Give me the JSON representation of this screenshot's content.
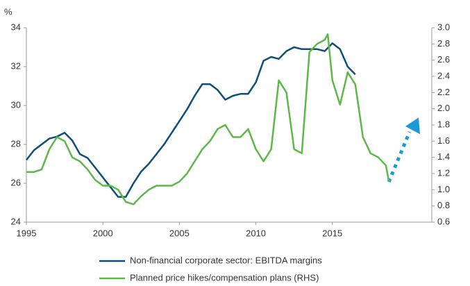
{
  "chart_data": {
    "type": "line",
    "ylabel": "%",
    "xlim": [
      1995,
      2021.5
    ],
    "xticks": [
      1995,
      2000,
      2005,
      2010,
      2015
    ],
    "ylim": [
      24,
      34
    ],
    "yticks": [
      24,
      26,
      28,
      30,
      32,
      34
    ],
    "y2lim": [
      0.6,
      3.0
    ],
    "y2ticks": [
      0.6,
      0.8,
      {
        "value": 1.0,
        "label": "1.0"
      },
      1.2,
      1.4,
      1.6,
      1.8,
      {
        "value": 2.0,
        "label": "2.0"
      },
      2.2,
      2.4,
      2.6,
      2.8,
      {
        "value": 3.0,
        "label": "3.0"
      }
    ],
    "series": [
      {
        "name": "Non-financial corporate sector: EBITDA margins",
        "color": "#0d4f78",
        "x": [
          1995,
          1995.5,
          1996,
          1996.5,
          1997,
          1997.5,
          1998,
          1998.5,
          1999,
          1999.5,
          2000,
          2000.5,
          2001,
          2001.5,
          2002,
          2002.5,
          2003,
          2003.5,
          2004,
          2004.5,
          2005,
          2005.5,
          2006,
          2006.5,
          2007,
          2007.5,
          2008,
          2008.5,
          2009,
          2009.5,
          2010,
          2010.5,
          2011,
          2011.5,
          2012,
          2012.5,
          2013,
          2013.5,
          2014,
          2014.5,
          2015,
          2015.5,
          2016,
          2016.5
        ],
        "values": [
          27.2,
          27.7,
          28.0,
          28.3,
          28.4,
          28.6,
          28.2,
          27.5,
          27.3,
          26.8,
          26.3,
          25.8,
          25.3,
          25.3,
          26.0,
          26.6,
          27.0,
          27.5,
          28.0,
          28.6,
          29.2,
          29.8,
          30.5,
          31.1,
          31.1,
          30.8,
          30.3,
          30.5,
          30.6,
          30.6,
          31.2,
          32.3,
          32.5,
          32.4,
          32.8,
          33.0,
          32.9,
          32.9,
          32.9,
          32.8,
          33.2,
          32.9,
          32.0,
          31.6
        ]
      },
      {
        "name": "Planned price hikes/compensation plans (RHS)",
        "color": "#5cb847",
        "axis": "y2",
        "x": [
          1995,
          1995.5,
          1996,
          1996.5,
          1997,
          1997.5,
          1998,
          1998.5,
          1999,
          1999.5,
          2000,
          2000.5,
          2001,
          2001.5,
          2002,
          2002.5,
          2003,
          2003.5,
          2004,
          2004.5,
          2005,
          2005.5,
          2006,
          2006.5,
          2007,
          2007.5,
          2008,
          2008.5,
          2009,
          2009.5,
          2010,
          2010.5,
          2011,
          2011.5,
          2012,
          2012.5,
          2013,
          2013.5,
          2014,
          2014.5,
          2014.7,
          2015,
          2015.5,
          2016,
          2016.5,
          2017,
          2017.5,
          2018,
          2018.5,
          2018.7
        ],
        "values": [
          1.22,
          1.22,
          1.25,
          1.5,
          1.65,
          1.6,
          1.4,
          1.35,
          1.25,
          1.12,
          1.05,
          1.05,
          1.0,
          0.85,
          0.82,
          0.92,
          1.0,
          1.05,
          1.05,
          1.05,
          1.1,
          1.2,
          1.35,
          1.5,
          1.6,
          1.75,
          1.8,
          1.65,
          1.65,
          1.75,
          1.5,
          1.35,
          1.5,
          2.35,
          2.2,
          1.5,
          1.45,
          2.7,
          2.8,
          2.85,
          2.92,
          2.35,
          2.05,
          2.45,
          2.3,
          1.65,
          1.45,
          1.4,
          1.3,
          1.1
        ]
      }
    ]
  }
}
